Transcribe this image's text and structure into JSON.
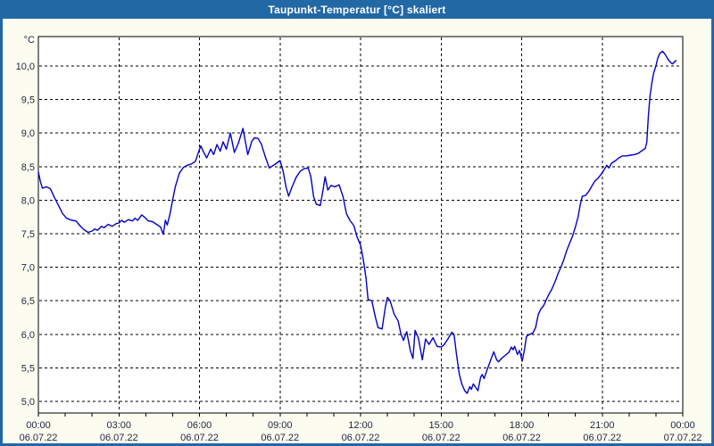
{
  "window": {
    "title": "Taupunkt-Temperatur [°C] skaliert"
  },
  "colors": {
    "titlebar": "#2268a5",
    "window_border": "#2268a5",
    "background": "#fcfcf0",
    "plot_background": "#ffffff",
    "plot_border": "#000000",
    "grid": "#000000",
    "axis_text": "#1c2540",
    "title_text": "#ffffff",
    "line": "#0000c8"
  },
  "chart_data": {
    "type": "line",
    "title": "Taupunkt-Temperatur [°C] skaliert",
    "ylabel": "°C",
    "unit_label": "°C",
    "grid": "dashed",
    "legend": "none",
    "x_axis": {
      "range_hours": [
        0,
        24
      ],
      "major_tick_every_hours": 3,
      "minor_tick_every_hours": 1,
      "major_labels": [
        {
          "time": "00:00",
          "date": "06.07.22"
        },
        {
          "time": "03:00",
          "date": "06.07.22"
        },
        {
          "time": "06:00",
          "date": "06.07.22"
        },
        {
          "time": "09:00",
          "date": "06.07.22"
        },
        {
          "time": "12:00",
          "date": "06.07.22"
        },
        {
          "time": "15:00",
          "date": "06.07.22"
        },
        {
          "time": "18:00",
          "date": "06.07.22"
        },
        {
          "time": "21:00",
          "date": "06.07.22"
        },
        {
          "time": "00:00",
          "date": "07.07.22"
        }
      ]
    },
    "y_axis": {
      "min": 5.0,
      "max": 10.0,
      "step": 0.5,
      "ticks": [
        {
          "value": 10.0,
          "label": "10,0"
        },
        {
          "value": 9.5,
          "label": "9,5"
        },
        {
          "value": 9.0,
          "label": "9,0"
        },
        {
          "value": 8.5,
          "label": "8,5"
        },
        {
          "value": 8.0,
          "label": "8,0"
        },
        {
          "value": 7.5,
          "label": "7,5"
        },
        {
          "value": 7.0,
          "label": "7,0"
        },
        {
          "value": 6.5,
          "label": "6,5"
        },
        {
          "value": 6.0,
          "label": "6,0"
        },
        {
          "value": 5.5,
          "label": "5,5"
        },
        {
          "value": 5.0,
          "label": "5,0"
        }
      ]
    },
    "series": [
      {
        "name": "Taupunkt-Temperatur",
        "points": [
          [
            0.0,
            8.42
          ],
          [
            0.08,
            8.27
          ],
          [
            0.15,
            8.18
          ],
          [
            0.3,
            8.2
          ],
          [
            0.45,
            8.17
          ],
          [
            0.6,
            8.04
          ],
          [
            0.75,
            7.92
          ],
          [
            0.9,
            7.8
          ],
          [
            1.05,
            7.73
          ],
          [
            1.25,
            7.7
          ],
          [
            1.4,
            7.69
          ],
          [
            1.55,
            7.62
          ],
          [
            1.7,
            7.56
          ],
          [
            1.85,
            7.52
          ],
          [
            2.0,
            7.54
          ],
          [
            2.1,
            7.57
          ],
          [
            2.2,
            7.55
          ],
          [
            2.35,
            7.61
          ],
          [
            2.45,
            7.59
          ],
          [
            2.6,
            7.64
          ],
          [
            2.75,
            7.61
          ],
          [
            2.9,
            7.65
          ],
          [
            3.0,
            7.66
          ],
          [
            3.1,
            7.7
          ],
          [
            3.2,
            7.67
          ],
          [
            3.35,
            7.71
          ],
          [
            3.5,
            7.69
          ],
          [
            3.6,
            7.73
          ],
          [
            3.7,
            7.7
          ],
          [
            3.85,
            7.78
          ],
          [
            4.0,
            7.73
          ],
          [
            4.1,
            7.69
          ],
          [
            4.25,
            7.68
          ],
          [
            4.4,
            7.64
          ],
          [
            4.55,
            7.6
          ],
          [
            4.65,
            7.49
          ],
          [
            4.73,
            7.7
          ],
          [
            4.8,
            7.63
          ],
          [
            4.9,
            7.79
          ],
          [
            5.0,
            8.0
          ],
          [
            5.1,
            8.2
          ],
          [
            5.25,
            8.4
          ],
          [
            5.4,
            8.49
          ],
          [
            5.55,
            8.52
          ],
          [
            5.7,
            8.54
          ],
          [
            5.85,
            8.58
          ],
          [
            5.95,
            8.7
          ],
          [
            6.05,
            8.81
          ],
          [
            6.15,
            8.72
          ],
          [
            6.27,
            8.63
          ],
          [
            6.42,
            8.76
          ],
          [
            6.53,
            8.68
          ],
          [
            6.65,
            8.83
          ],
          [
            6.77,
            8.73
          ],
          [
            6.88,
            8.87
          ],
          [
            7.0,
            8.76
          ],
          [
            7.15,
            9.0
          ],
          [
            7.3,
            8.71
          ],
          [
            7.45,
            8.85
          ],
          [
            7.62,
            9.07
          ],
          [
            7.8,
            8.68
          ],
          [
            7.95,
            8.88
          ],
          [
            8.05,
            8.93
          ],
          [
            8.18,
            8.92
          ],
          [
            8.3,
            8.84
          ],
          [
            8.45,
            8.65
          ],
          [
            8.6,
            8.48
          ],
          [
            8.8,
            8.53
          ],
          [
            9.0,
            8.59
          ],
          [
            9.12,
            8.42
          ],
          [
            9.22,
            8.2
          ],
          [
            9.32,
            8.06
          ],
          [
            9.45,
            8.2
          ],
          [
            9.6,
            8.34
          ],
          [
            9.75,
            8.43
          ],
          [
            9.9,
            8.47
          ],
          [
            10.05,
            8.48
          ],
          [
            10.15,
            8.35
          ],
          [
            10.25,
            8.05
          ],
          [
            10.35,
            7.94
          ],
          [
            10.5,
            7.92
          ],
          [
            10.6,
            8.15
          ],
          [
            10.68,
            8.35
          ],
          [
            10.78,
            8.15
          ],
          [
            10.9,
            8.22
          ],
          [
            11.05,
            8.2
          ],
          [
            11.2,
            8.23
          ],
          [
            11.35,
            8.05
          ],
          [
            11.47,
            7.8
          ],
          [
            11.6,
            7.7
          ],
          [
            11.75,
            7.62
          ],
          [
            11.87,
            7.45
          ],
          [
            12.0,
            7.33
          ],
          [
            12.1,
            7.12
          ],
          [
            12.2,
            6.85
          ],
          [
            12.28,
            6.52
          ],
          [
            12.42,
            6.5
          ],
          [
            12.55,
            6.26
          ],
          [
            12.65,
            6.1
          ],
          [
            12.8,
            6.08
          ],
          [
            12.92,
            6.4
          ],
          [
            13.0,
            6.55
          ],
          [
            13.1,
            6.5
          ],
          [
            13.25,
            6.3
          ],
          [
            13.4,
            6.2
          ],
          [
            13.5,
            6.01
          ],
          [
            13.6,
            5.91
          ],
          [
            13.72,
            6.04
          ],
          [
            13.85,
            5.76
          ],
          [
            13.95,
            5.64
          ],
          [
            14.03,
            6.06
          ],
          [
            14.15,
            5.95
          ],
          [
            14.3,
            5.62
          ],
          [
            14.42,
            5.93
          ],
          [
            14.55,
            5.85
          ],
          [
            14.7,
            5.95
          ],
          [
            14.85,
            5.82
          ],
          [
            15.0,
            5.81
          ],
          [
            15.1,
            5.84
          ],
          [
            15.25,
            5.93
          ],
          [
            15.4,
            6.03
          ],
          [
            15.48,
            6.0
          ],
          [
            15.58,
            5.68
          ],
          [
            15.68,
            5.4
          ],
          [
            15.78,
            5.25
          ],
          [
            15.88,
            5.16
          ],
          [
            15.97,
            5.12
          ],
          [
            16.07,
            5.22
          ],
          [
            16.13,
            5.18
          ],
          [
            16.2,
            5.26
          ],
          [
            16.3,
            5.2
          ],
          [
            16.37,
            5.16
          ],
          [
            16.47,
            5.36
          ],
          [
            16.53,
            5.4
          ],
          [
            16.6,
            5.34
          ],
          [
            16.73,
            5.49
          ],
          [
            16.85,
            5.62
          ],
          [
            16.96,
            5.74
          ],
          [
            17.07,
            5.62
          ],
          [
            17.14,
            5.59
          ],
          [
            17.25,
            5.64
          ],
          [
            17.4,
            5.69
          ],
          [
            17.52,
            5.73
          ],
          [
            17.62,
            5.81
          ],
          [
            17.68,
            5.77
          ],
          [
            17.74,
            5.82
          ],
          [
            17.84,
            5.7
          ],
          [
            17.92,
            5.76
          ],
          [
            18.02,
            5.6
          ],
          [
            18.1,
            5.76
          ],
          [
            18.18,
            5.97
          ],
          [
            18.3,
            6.0
          ],
          [
            18.42,
            6.02
          ],
          [
            18.52,
            6.1
          ],
          [
            18.62,
            6.3
          ],
          [
            18.72,
            6.38
          ],
          [
            18.82,
            6.43
          ],
          [
            18.92,
            6.52
          ],
          [
            19.02,
            6.6
          ],
          [
            19.12,
            6.67
          ],
          [
            19.25,
            6.79
          ],
          [
            19.35,
            6.9
          ],
          [
            19.45,
            6.99
          ],
          [
            19.56,
            7.1
          ],
          [
            19.67,
            7.24
          ],
          [
            19.78,
            7.35
          ],
          [
            19.89,
            7.46
          ],
          [
            20.0,
            7.6
          ],
          [
            20.1,
            7.75
          ],
          [
            20.18,
            7.93
          ],
          [
            20.26,
            8.06
          ],
          [
            20.38,
            8.07
          ],
          [
            20.5,
            8.13
          ],
          [
            20.6,
            8.2
          ],
          [
            20.72,
            8.28
          ],
          [
            20.85,
            8.33
          ],
          [
            20.95,
            8.38
          ],
          [
            21.05,
            8.44
          ],
          [
            21.17,
            8.52
          ],
          [
            21.25,
            8.48
          ],
          [
            21.35,
            8.55
          ],
          [
            21.5,
            8.59
          ],
          [
            21.62,
            8.63
          ],
          [
            21.75,
            8.66
          ],
          [
            21.9,
            8.66
          ],
          [
            22.05,
            8.67
          ],
          [
            22.2,
            8.68
          ],
          [
            22.35,
            8.7
          ],
          [
            22.48,
            8.74
          ],
          [
            22.6,
            8.77
          ],
          [
            22.66,
            8.86
          ],
          [
            22.72,
            9.26
          ],
          [
            22.78,
            9.55
          ],
          [
            22.85,
            9.75
          ],
          [
            22.92,
            9.9
          ],
          [
            23.0,
            10.0
          ],
          [
            23.07,
            10.12
          ],
          [
            23.15,
            10.19
          ],
          [
            23.25,
            10.22
          ],
          [
            23.35,
            10.17
          ],
          [
            23.45,
            10.1
          ],
          [
            23.55,
            10.05
          ],
          [
            23.62,
            10.03
          ],
          [
            23.68,
            10.06
          ],
          [
            23.75,
            10.08
          ]
        ]
      }
    ]
  }
}
